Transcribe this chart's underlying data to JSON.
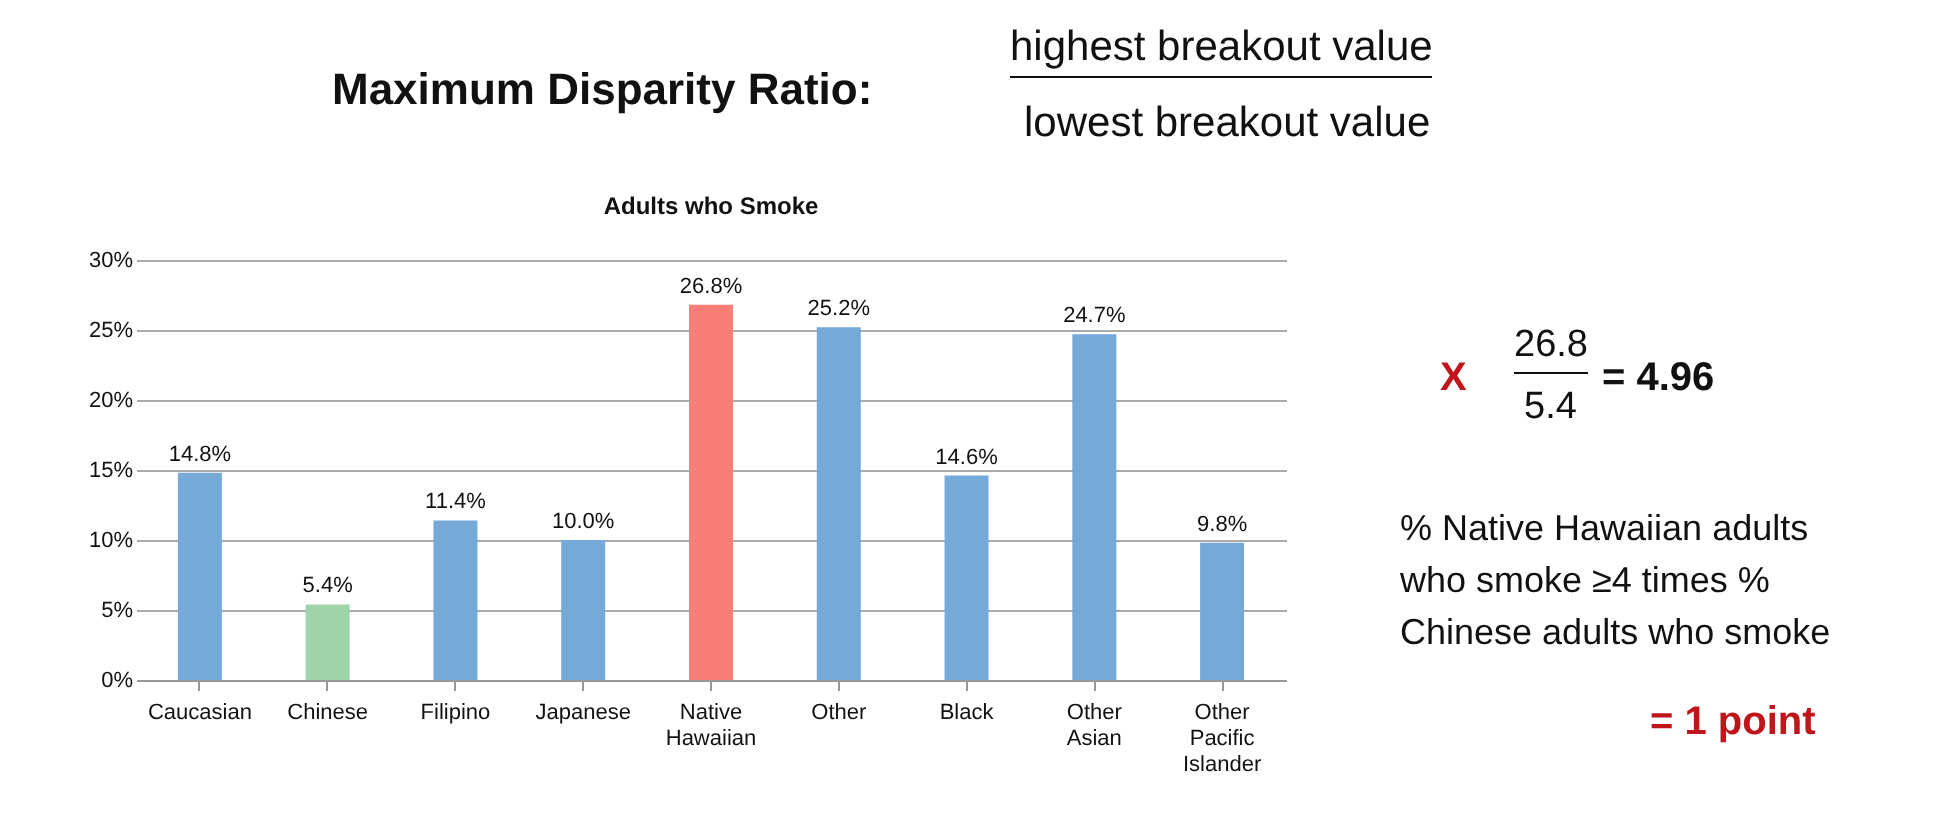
{
  "chart_data": {
    "type": "bar",
    "title": "Adults who Smoke",
    "categories": [
      "Caucasian",
      "Chinese",
      "Filipino",
      "Japanese",
      "Native Hawaiian",
      "Other",
      "Black",
      "Other Asian",
      "Other Pacific Islander"
    ],
    "values": [
      14.8,
      5.4,
      11.4,
      10.0,
      26.8,
      25.2,
      14.6,
      24.7,
      9.8
    ],
    "colors": [
      "#74a9d8",
      "#9fd4a8",
      "#74a9d8",
      "#74a9d8",
      "#f87e78",
      "#74a9d8",
      "#74a9d8",
      "#74a9d8",
      "#74a9d8"
    ],
    "value_labels": [
      "14.8%",
      "5.4%",
      "11.4%",
      "10.0%",
      "26.8%",
      "25.2%",
      "14.6%",
      "24.7%",
      "9.8%"
    ],
    "ylim": [
      0,
      30
    ],
    "yticks": [
      {
        "value": 0,
        "label": "0%"
      },
      {
        "value": 5,
        "label": "5%"
      },
      {
        "value": 10,
        "label": "10%"
      },
      {
        "value": 15,
        "label": "15%"
      },
      {
        "value": 20,
        "label": "20%"
      },
      {
        "value": 25,
        "label": "25%"
      },
      {
        "value": 30,
        "label": "30%"
      }
    ],
    "grid": "y",
    "annotations": [
      "Maximum Disparity Ratio:",
      "highest breakout value",
      "lowest breakout value",
      "X",
      "26.8",
      "5.4",
      "= 4.96",
      "% Native Hawaiian adults who smoke ≥4 times % Chinese adults who smoke",
      "= 1 point"
    ]
  }
}
